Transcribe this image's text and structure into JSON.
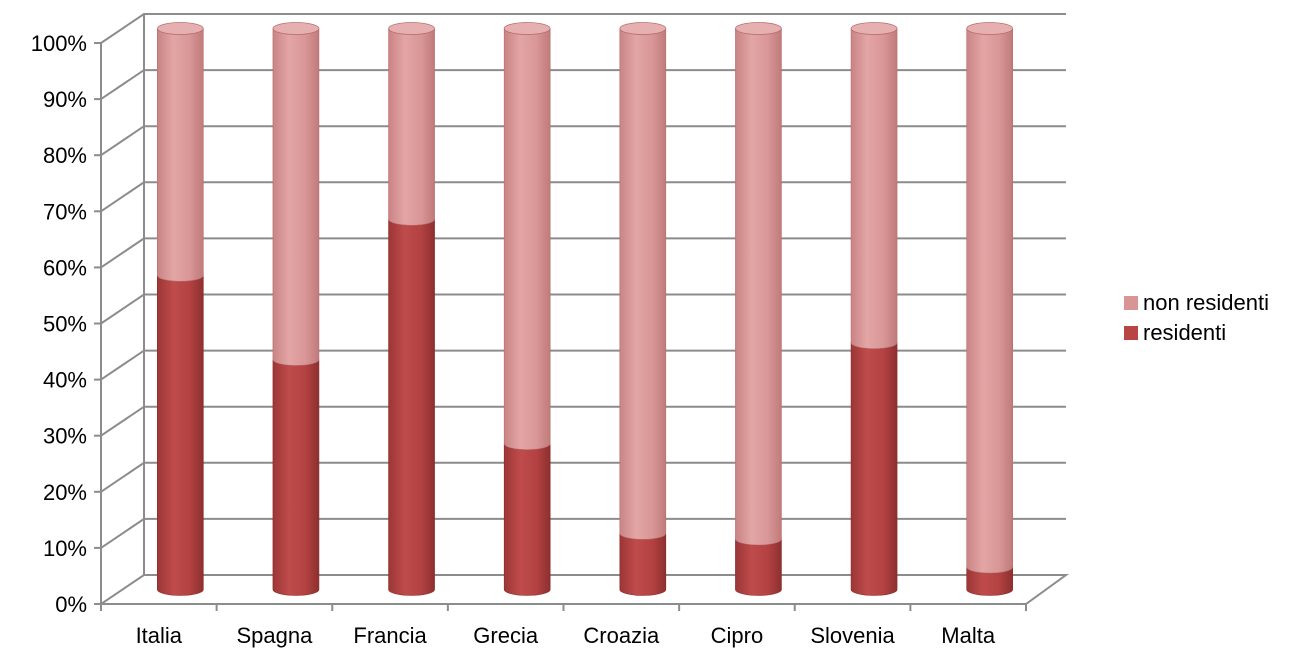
{
  "chart_data": {
    "type": "bar",
    "stacked": true,
    "three_d": true,
    "categories": [
      "Italia",
      "Spagna",
      "Francia",
      "Grecia",
      "Croazia",
      "Cipro",
      "Slovenia",
      "Malta"
    ],
    "series": [
      {
        "name": "residenti",
        "values": [
          56,
          41,
          66,
          26,
          10,
          9,
          44,
          4
        ],
        "color": "#b84444"
      },
      {
        "name": "non residenti",
        "values": [
          44,
          59,
          34,
          74,
          90,
          91,
          56,
          96
        ],
        "color": "#d99595"
      }
    ],
    "ylim": [
      0,
      100
    ],
    "yticks": [
      "0%",
      "10%",
      "20%",
      "30%",
      "40%",
      "50%",
      "60%",
      "70%",
      "80%",
      "90%",
      "100%"
    ],
    "grid": true,
    "legend_position": "right"
  }
}
